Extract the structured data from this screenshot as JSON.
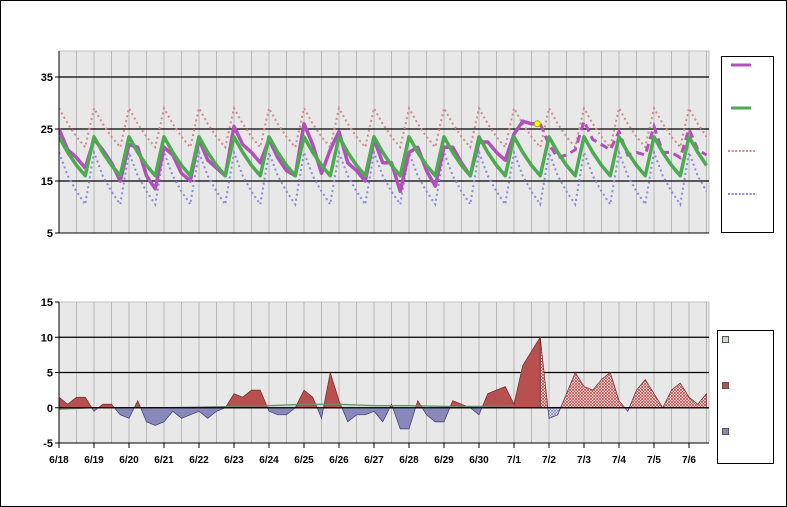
{
  "chart_data": [
    {
      "type": "line",
      "title": "",
      "xlabel": "",
      "ylabel": "",
      "ylim": [
        5,
        40
      ],
      "yticks": [
        "35",
        "25",
        "15",
        "5"
      ],
      "ytick_values": [
        35,
        25,
        15,
        5
      ],
      "grid": true,
      "legend": "right",
      "x_start": "6/18 00:00",
      "x_step_hours": 6,
      "series": [
        {
          "key": "observed",
          "color": "#b050b8",
          "style": "solid-thick",
          "values_note_last_observed_index": 55
        },
        {
          "key": "normal",
          "color": "#4caa50",
          "style": "solid-thick",
          "pattern_per_day": [
            23.5,
            20.5,
            18,
            16
          ]
        },
        {
          "key": "upper",
          "color": "#d08a8a",
          "style": "dotted",
          "pattern_per_day": [
            29,
            26,
            23.5,
            21.5
          ]
        },
        {
          "key": "lower",
          "color": "#8a8ad8",
          "style": "dotted",
          "pattern_per_day": [
            20.5,
            16,
            13,
            10.5
          ]
        }
      ],
      "highlight_point": {
        "date": "7/1 16:00",
        "value": 26,
        "color": "#ffff00"
      }
    },
    {
      "type": "area",
      "title": "",
      "xlabel": "",
      "ylabel": "",
      "ylim": [
        -5,
        15
      ],
      "yticks": [
        "15",
        "10",
        "5",
        "0",
        "-5"
      ],
      "ytick_values": [
        15,
        10,
        5,
        0,
        -5
      ],
      "grid": true,
      "legend": "right",
      "x_start": "6/18 00:00",
      "x_step_hours": 6,
      "anomaly": [
        1.5,
        0.5,
        1.5,
        1.5,
        -0.5,
        0.5,
        0.5,
        -1,
        -1.5,
        1,
        -2,
        -2.5,
        -2,
        -0.5,
        -1.5,
        -1,
        -0.5,
        -1.5,
        -0.5,
        0,
        2,
        1.5,
        2.5,
        2.5,
        -0.5,
        -1,
        -1,
        0,
        2.5,
        1.5,
        -1.5,
        5,
        1,
        -2,
        -1,
        -1,
        -0.5,
        -2,
        0.5,
        -3,
        -3,
        1,
        -1,
        -2,
        -2,
        1,
        0.5,
        0,
        -1,
        2,
        2.5,
        3,
        0.5,
        6,
        8,
        10,
        -1.5,
        -1,
        2,
        5,
        3,
        2.5,
        4,
        5,
        1,
        -0.5,
        2.5,
        4,
        2,
        0,
        2.5,
        3.5,
        1.5,
        0.5,
        2
      ],
      "last_observed_index": 55,
      "baseline_daily": [
        -0.2,
        0,
        0,
        0,
        0.1,
        0.2,
        0.3,
        0.5,
        0.5,
        0.3,
        0.3,
        0.2,
        0.2,
        0.3
      ],
      "colors": {
        "positive": "#b85050",
        "negative": "#8888bb",
        "baseline": "#c8e0c8",
        "baseline_line": "#6a8a6a"
      }
    }
  ],
  "x_tick_labels": [
    "6/18",
    "6/19",
    "6/20",
    "6/21",
    "6/22",
    "6/23",
    "6/24",
    "6/25",
    "6/26",
    "6/27",
    "6/28",
    "6/29",
    "6/30",
    "7/1",
    "7/2",
    "7/3",
    "7/4",
    "7/5",
    "7/6"
  ],
  "legend_top": [
    {
      "color": "#b050b8",
      "style": "solid"
    },
    {
      "color": "#4caa50",
      "style": "solid"
    },
    {
      "color": "#d08a8a",
      "style": "dotted"
    },
    {
      "color": "#8a8ad8",
      "style": "dotted"
    }
  ],
  "legend_bottom": [
    {
      "color": "#c8e0c8"
    },
    {
      "color": "#b85050"
    },
    {
      "color": "#8888bb"
    }
  ]
}
